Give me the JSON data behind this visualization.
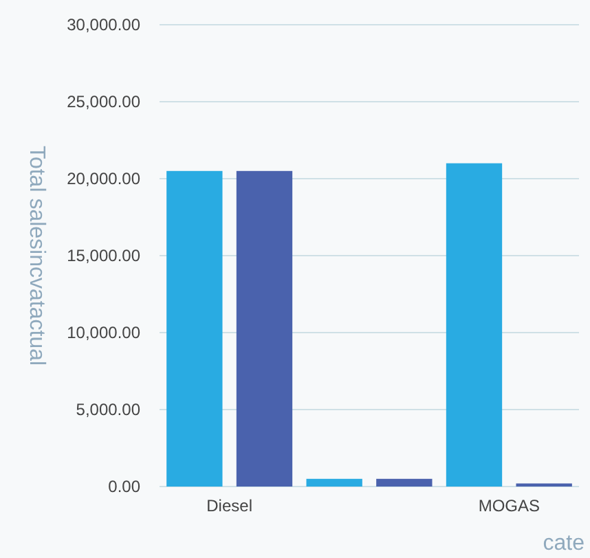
{
  "chart_data": {
    "type": "bar",
    "ylabel": "Total salesincvatactual",
    "xlabel": "cate",
    "categories": [
      "Diesel",
      null,
      "MOGAS"
    ],
    "series": [
      {
        "color": "#29abe2",
        "values": [
          20500,
          500,
          21000
        ]
      },
      {
        "color": "#4a62ad",
        "values": [
          20500,
          500,
          200
        ]
      }
    ],
    "ylim": [
      0,
      30000
    ],
    "yticks": [
      {
        "value": 0,
        "label": "0.00"
      },
      {
        "value": 5000,
        "label": "5,000.00"
      },
      {
        "value": 10000,
        "label": "10,000.00"
      },
      {
        "value": 15000,
        "label": "15,000.00"
      },
      {
        "value": 20000,
        "label": "20,000.00"
      },
      {
        "value": 25000,
        "label": "25,000.00"
      },
      {
        "value": 30000,
        "label": "30,000.00"
      }
    ],
    "grid": "y"
  }
}
